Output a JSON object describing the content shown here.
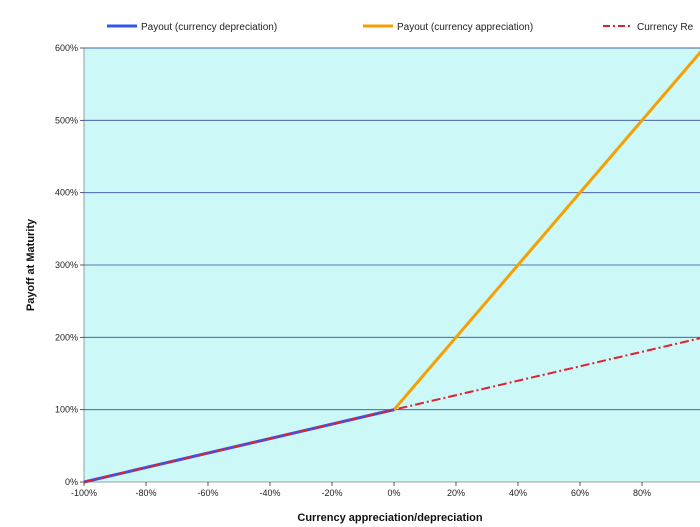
{
  "chart_data": {
    "type": "line",
    "xlabel": "Currency appreciation/depreciation",
    "ylabel": "Payoff at Maturity",
    "xlim": [
      -100,
      100
    ],
    "ylim": [
      0,
      600
    ],
    "x_ticks": [
      "-100%",
      "-80%",
      "-60%",
      "-40%",
      "-20%",
      "0%",
      "20%",
      "40%",
      "60%",
      "80%"
    ],
    "y_ticks": [
      "0%",
      "100%",
      "200%",
      "300%",
      "400%",
      "500%",
      "600%"
    ],
    "grid": "horizontal",
    "legend_position": "top",
    "series": [
      {
        "name": "Payout (currency depreciation)",
        "color": "#3355ee",
        "style": "solid",
        "x": [
          -100,
          0
        ],
        "y": [
          0,
          100
        ]
      },
      {
        "name": "Payout (currency appreciation)",
        "color": "#f5a000",
        "style": "solid",
        "x": [
          0,
          100
        ],
        "y": [
          100,
          600
        ]
      },
      {
        "name": "Currency Re",
        "color": "#dd2233",
        "style": "dashdot",
        "x": [
          -100,
          100
        ],
        "y": [
          0,
          200
        ]
      }
    ]
  },
  "colors": {
    "plot_background": "#ccf8f8",
    "gridline": "#3a4aa0"
  }
}
